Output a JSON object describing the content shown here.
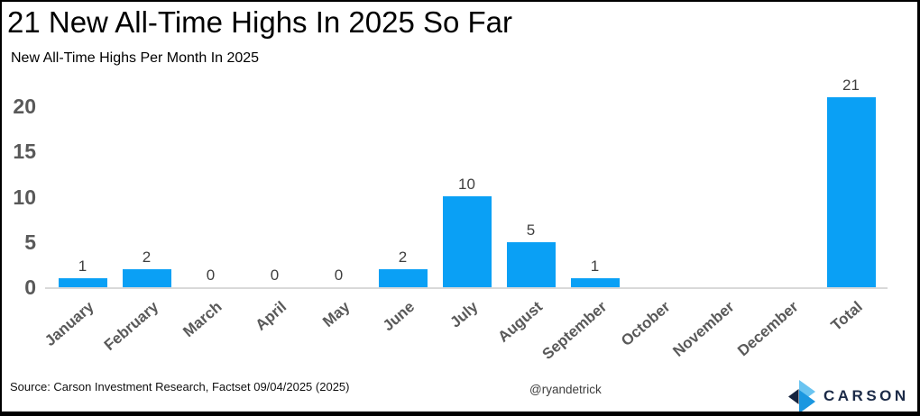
{
  "header": {
    "title": "21 New All-Time Highs In 2025 So Far",
    "subtitle": "New All-Time Highs Per Month In 2025"
  },
  "chart_data": {
    "type": "bar",
    "categories": [
      "January",
      "February",
      "March",
      "April",
      "May",
      "June",
      "July",
      "August",
      "September",
      "October",
      "November",
      "December",
      "Total"
    ],
    "values": [
      1,
      2,
      0,
      0,
      0,
      2,
      10,
      5,
      1,
      0,
      0,
      0,
      21
    ],
    "value_labels": [
      "1",
      "2",
      "0",
      "0",
      "0",
      "2",
      "10",
      "5",
      "1",
      "",
      "",
      "",
      "21"
    ],
    "title": "21 New All-Time Highs In 2025 So Far",
    "subtitle": "New All-Time Highs Per Month In 2025",
    "xlabel": "",
    "ylabel": "",
    "yticks": [
      0,
      5,
      10,
      15,
      20
    ],
    "ylim": [
      0,
      21
    ],
    "grid": false,
    "legend": false
  },
  "footer": {
    "source": "Source: Carson Investment Research, Factset 09/04/2025 (2025)",
    "handle": "@ryandetrick",
    "brand_name": "CARSON"
  },
  "colors": {
    "bar": "#0aa0f5",
    "axis_label": "#595959",
    "value_label": "#3f3f3f",
    "axis_line": "#d9d9d9",
    "title_text": "#000000",
    "brand_navy": "#1b2a47",
    "brand_light_blue": "#6ac4f1",
    "brand_mid_blue": "#1b97e0"
  }
}
